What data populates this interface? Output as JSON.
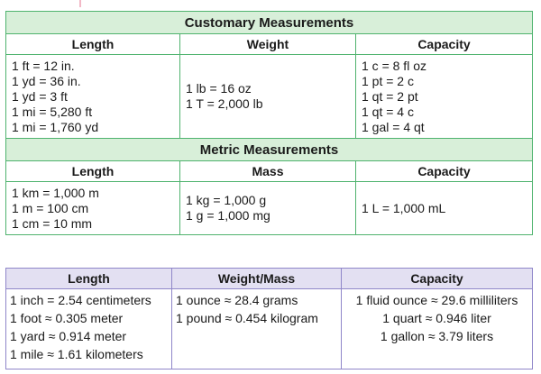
{
  "customary": {
    "title": "Customary Measurements",
    "headers": [
      "Length",
      "Weight",
      "Capacity"
    ],
    "length": [
      "1 ft = 12 in.",
      "1 yd = 36 in.",
      "1 yd = 3 ft",
      "1 mi = 5,280 ft",
      "1 mi = 1,760 yd"
    ],
    "weight": [
      "1 lb = 16 oz",
      "1 T = 2,000 lb"
    ],
    "capacity": [
      "1 c = 8 fl oz",
      "1 pt = 2 c",
      "1 qt = 2 pt",
      "1 qt = 4 c",
      "1 gal = 4 qt"
    ]
  },
  "metric": {
    "title": "Metric Measurements",
    "headers": [
      "Length",
      "Mass",
      "Capacity"
    ],
    "length": [
      "1 km = 1,000 m",
      "1 m = 100 cm",
      "1 cm = 10 mm"
    ],
    "mass": [
      "1 kg = 1,000 g",
      "1 g = 1,000 mg"
    ],
    "capacity": [
      "1 L = 1,000 mL"
    ]
  },
  "conversions": {
    "headers": [
      "Length",
      "Weight/Mass",
      "Capacity"
    ],
    "length": [
      "1 inch = 2.54 centimeters",
      "1 foot ≈ 0.305 meter",
      "1 yard ≈ 0.914 meter",
      "1 mile ≈ 1.61 kilometers"
    ],
    "weight": [
      "1 ounce ≈ 28.4 grams",
      "1 pound ≈ 0.454 kilogram"
    ],
    "capacity": [
      "1 fluid ounce ≈ 29.6 milliliters",
      "1 quart ≈ 0.946 liter",
      "1 gallon ≈ 3.79 liters"
    ]
  },
  "colors": {
    "green_border": "#4fb36e",
    "green_fill": "#d8efd9",
    "purple_border": "#8f86c9",
    "purple_fill": "#e3e0f2"
  }
}
